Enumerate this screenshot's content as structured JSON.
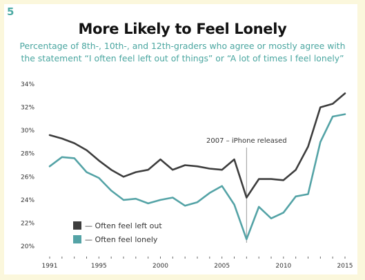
{
  "figure_number": "5",
  "chart_data": {
    "type": "line",
    "title": "More Likely to Feel Lonely",
    "subtitle": [
      "Percentage of 8th-, 10th-, and 12th-graders who agree or mostly agree with",
      "the statement “I often feel left out of things” or “A lot of times I feel lonely”"
    ],
    "x": [
      1991,
      1992,
      1993,
      1994,
      1995,
      1996,
      1997,
      1998,
      1999,
      2000,
      2001,
      2002,
      2003,
      2004,
      2005,
      2006,
      2007,
      2008,
      2009,
      2010,
      2011,
      2012,
      2013,
      2014,
      2015
    ],
    "x_ticks": [
      "1991",
      "1995",
      "2000",
      "2005",
      "2010",
      "2015"
    ],
    "y_ticks": [
      "20%",
      "22%",
      "24%",
      "26%",
      "28%",
      "30%",
      "32%",
      "34%"
    ],
    "ylim": [
      20,
      34
    ],
    "series": [
      {
        "name": "— Often feel left out",
        "color": "#3d3d3d",
        "values": [
          29.6,
          29.3,
          28.9,
          28.3,
          27.4,
          26.6,
          26.0,
          26.4,
          26.6,
          27.5,
          26.6,
          27.0,
          26.9,
          26.7,
          26.6,
          27.5,
          24.2,
          25.8,
          25.8,
          25.7,
          26.6,
          28.6,
          32.0,
          32.3,
          33.2
        ]
      },
      {
        "name": "— Often feel lonely",
        "color": "#54a3a6",
        "values": [
          26.9,
          27.7,
          27.6,
          26.4,
          25.9,
          24.8,
          24.0,
          24.1,
          23.7,
          24.0,
          24.2,
          23.5,
          23.8,
          24.6,
          25.2,
          23.6,
          20.6,
          23.4,
          22.4,
          22.9,
          24.3,
          24.5,
          29.0,
          31.2,
          31.4
        ]
      }
    ],
    "annotations": [
      {
        "x": 2007,
        "text": "2007 – iPhone released"
      }
    ],
    "legend": "bottom-left",
    "grid": false
  }
}
